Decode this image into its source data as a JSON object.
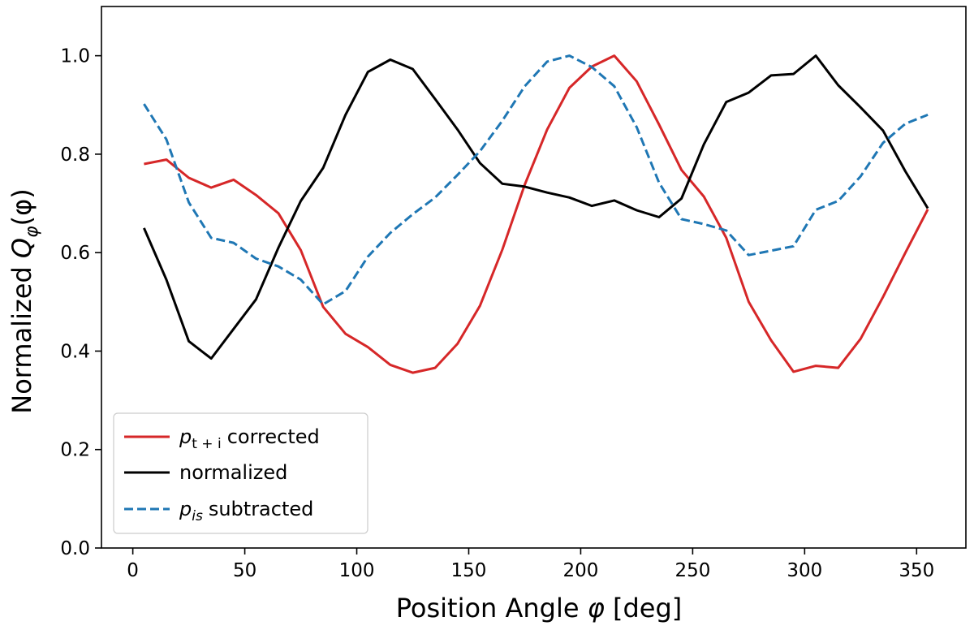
{
  "chart_data": {
    "type": "line",
    "xlabel_text": "Position Angle ",
    "xlabel_symbol": "φ",
    "xlabel_unit": " [deg]",
    "ylabel_text": "Normalized ",
    "ylabel_Q": "Q",
    "ylabel_sub": "φ",
    "ylabel_arg": "(φ)",
    "xlim": [
      -14,
      372
    ],
    "ylim": [
      0.0,
      1.1
    ],
    "xticks": [
      0,
      50,
      100,
      150,
      200,
      250,
      300,
      350
    ],
    "yticks": [
      0.0,
      0.2,
      0.4,
      0.6,
      0.8,
      1.0
    ],
    "xtick_labels": [
      "0",
      "50",
      "100",
      "150",
      "200",
      "250",
      "300",
      "350"
    ],
    "ytick_labels": [
      "0.0",
      "0.2",
      "0.4",
      "0.6",
      "0.8",
      "1.0"
    ],
    "legend_position": "lower-left",
    "grid": false,
    "x": [
      5,
      15,
      25,
      35,
      45,
      55,
      65,
      75,
      85,
      95,
      105,
      115,
      125,
      135,
      145,
      155,
      165,
      175,
      185,
      195,
      205,
      215,
      225,
      235,
      245,
      255,
      265,
      275,
      285,
      295,
      305,
      315,
      325,
      335,
      345,
      355
    ],
    "series": [
      {
        "name": "corrected",
        "name_symbol": "p",
        "name_sub": "t + i",
        "color": "#d62728",
        "dash": "solid",
        "values": [
          0.78,
          0.789,
          0.752,
          0.732,
          0.748,
          0.717,
          0.68,
          0.605,
          0.49,
          0.435,
          0.408,
          0.372,
          0.356,
          0.366,
          0.415,
          0.492,
          0.606,
          0.738,
          0.85,
          0.935,
          0.978,
          1.0,
          0.948,
          0.86,
          0.768,
          0.714,
          0.63,
          0.5,
          0.422,
          0.358,
          0.37,
          0.366,
          0.425,
          0.51,
          0.6,
          0.688
        ]
      },
      {
        "name": "normalized",
        "name_symbol": "",
        "name_sub": "",
        "color": "#000000",
        "dash": "solid",
        "values": [
          0.65,
          0.545,
          0.42,
          0.385,
          0.445,
          0.505,
          0.61,
          0.705,
          0.772,
          0.88,
          0.967,
          0.992,
          0.973,
          0.912,
          0.85,
          0.782,
          0.74,
          0.734,
          0.722,
          0.712,
          0.695,
          0.706,
          0.686,
          0.672,
          0.71,
          0.82,
          0.906,
          0.925,
          0.96,
          0.963,
          1.0,
          0.94,
          0.895,
          0.848,
          0.765,
          0.69
        ]
      },
      {
        "name": "subtracted",
        "name_symbol": "p",
        "name_sub": "is",
        "color": "#1f77b4",
        "dash": "dashed",
        "values": [
          0.902,
          0.83,
          0.702,
          0.63,
          0.62,
          0.588,
          0.572,
          0.545,
          0.495,
          0.522,
          0.592,
          0.64,
          0.678,
          0.712,
          0.758,
          0.806,
          0.868,
          0.938,
          0.988,
          1.0,
          0.977,
          0.938,
          0.855,
          0.742,
          0.668,
          0.658,
          0.645,
          0.595,
          0.604,
          0.613,
          0.687,
          0.705,
          0.755,
          0.823,
          0.862,
          0.88
        ]
      }
    ]
  }
}
